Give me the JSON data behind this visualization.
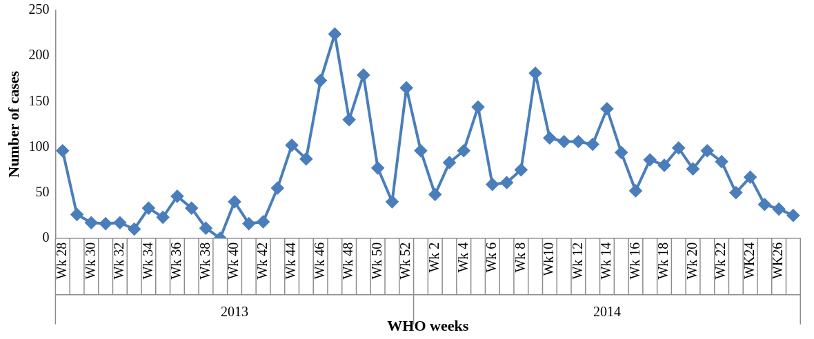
{
  "chart_data": {
    "type": "line",
    "xlabel": "WHO weeks",
    "ylabel": "Number of cases",
    "categories": [
      "Wk 28",
      null,
      "Wk 30",
      null,
      "Wk 32",
      null,
      "Wk 34",
      null,
      "Wk 36",
      null,
      "Wk 38",
      null,
      "Wk 40",
      null,
      "Wk 42",
      null,
      "Wk 44",
      null,
      "Wk 46",
      null,
      "Wk 48",
      null,
      "Wk 50",
      null,
      "Wk 52",
      null,
      "Wk 2",
      null,
      "Wk 4",
      null,
      "Wk 6",
      null,
      "Wk 8",
      null,
      "Wk10",
      null,
      "Wk 12",
      null,
      "Wk 14",
      null,
      "Wk 16",
      null,
      "Wk 18",
      null,
      "Wk 20",
      null,
      "Wk 22",
      null,
      "WK24",
      null,
      "WK26",
      null
    ],
    "series": [
      {
        "color": "#4a7ebb",
        "values": [
          96,
          26,
          17,
          16,
          17,
          10,
          33,
          23,
          46,
          33,
          11,
          0,
          40,
          16,
          18,
          55,
          102,
          87,
          173,
          224,
          130,
          179,
          77,
          40,
          165,
          96,
          48,
          83,
          96,
          144,
          59,
          61,
          75,
          181,
          110,
          106,
          106,
          103,
          142,
          94,
          52,
          86,
          80,
          99,
          76,
          96,
          84,
          50,
          67,
          37,
          32,
          25
        ]
      }
    ],
    "annotations": [
      "2013",
      "2014"
    ],
    "ylim": [
      0,
      250
    ],
    "yticks": [
      0,
      50,
      100,
      150,
      200,
      250
    ],
    "grid": false,
    "legend": false,
    "marker": "diamond",
    "line_style": "solid"
  }
}
